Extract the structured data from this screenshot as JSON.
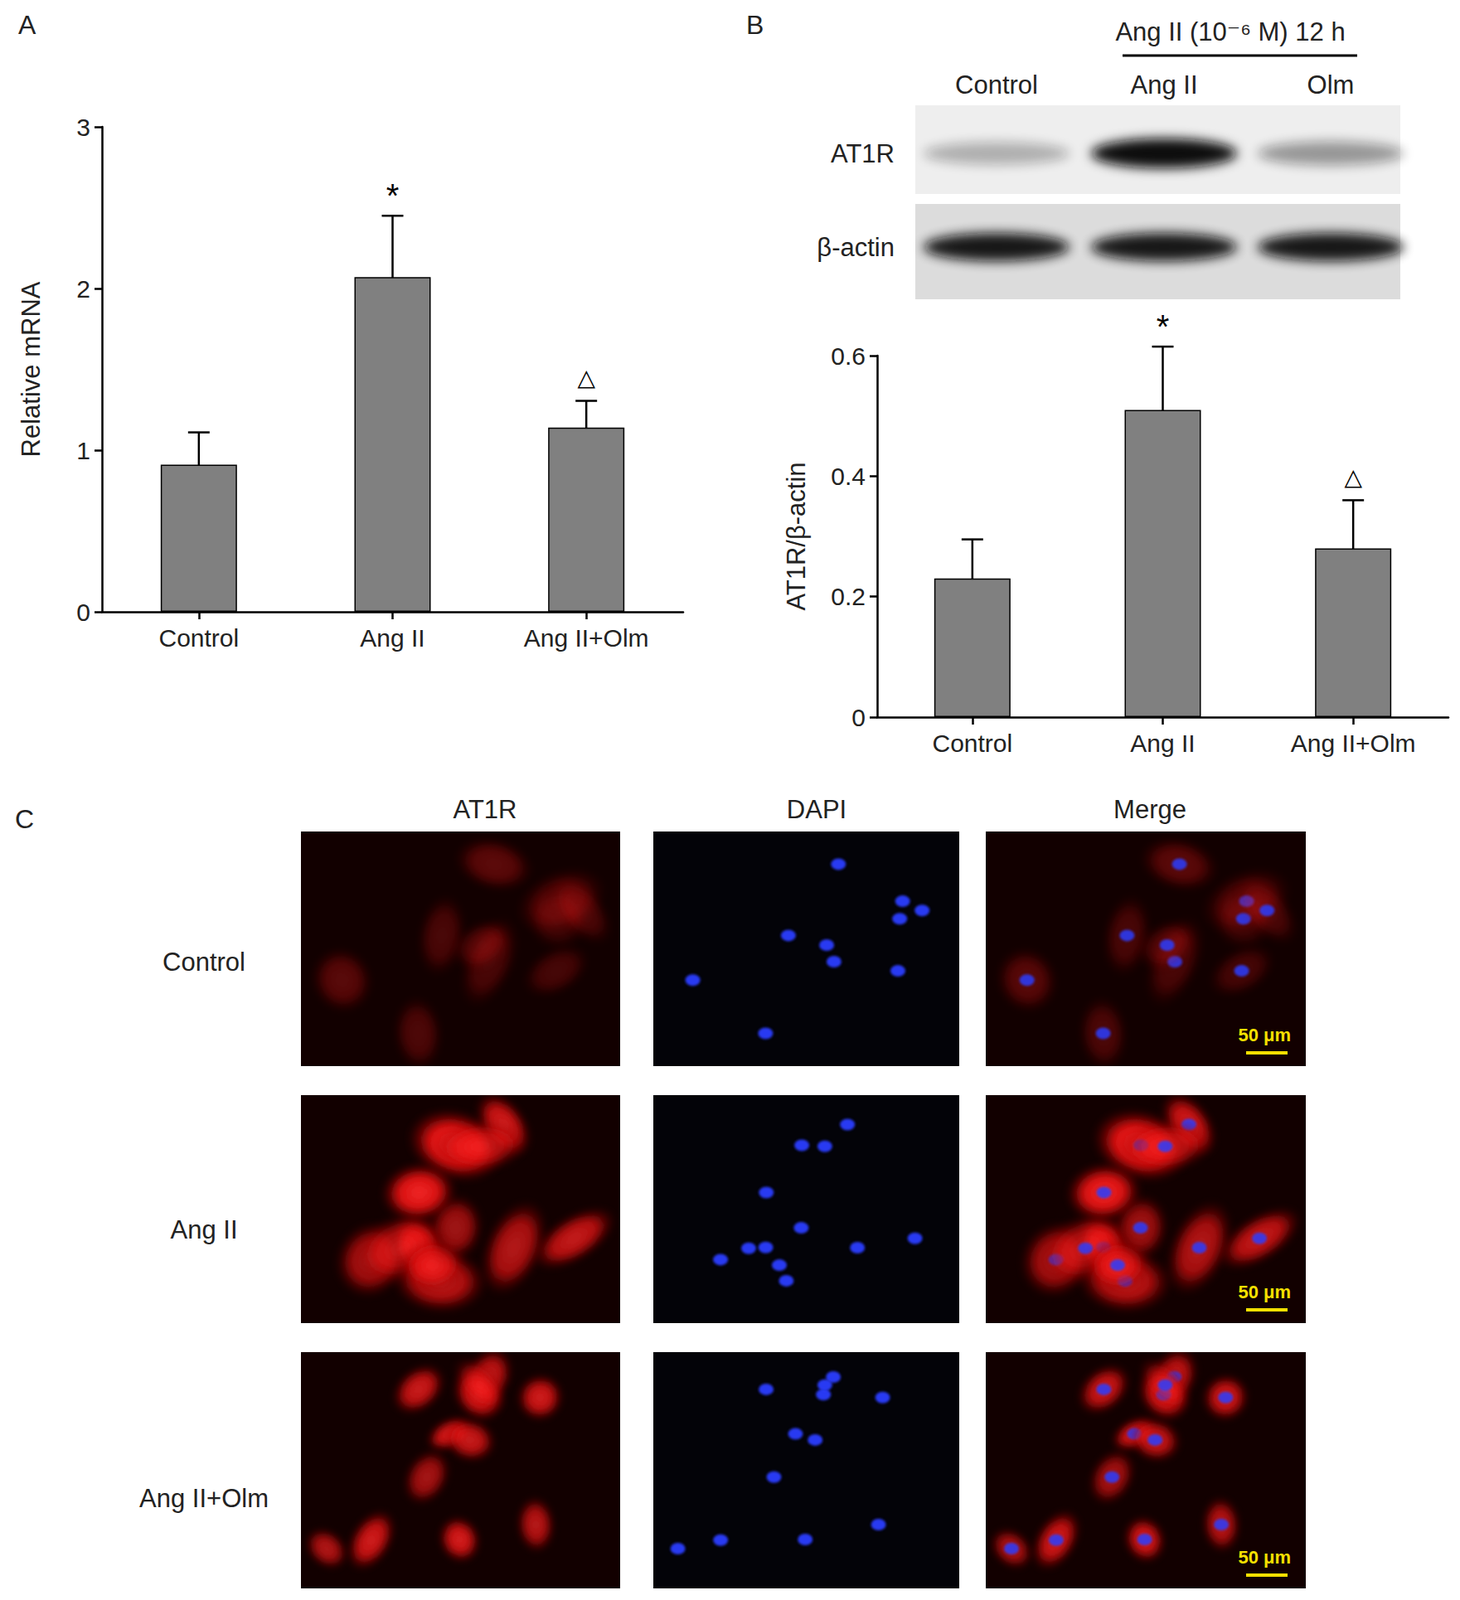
{
  "chart_data": [
    {
      "type": "bar",
      "categories": [
        "Control",
        "Ang II",
        "Ang II+Olm"
      ],
      "values": [
        0.91,
        2.07,
        1.14
      ],
      "errors": [
        0.2,
        0.38,
        0.165
      ],
      "annotations": [
        null,
        "*",
        "△"
      ],
      "ylabel": "Relative mRNA",
      "ylim": [
        0,
        3
      ],
      "yticks": [
        0,
        1,
        2,
        3
      ],
      "color": "#808080",
      "grid": false
    },
    {
      "type": "bar",
      "categories": [
        "Control",
        "Ang II",
        "Ang II+Olm"
      ],
      "values": [
        0.23,
        0.51,
        0.28
      ],
      "errors": [
        0.065,
        0.105,
        0.08
      ],
      "annotations": [
        null,
        "*",
        "△"
      ],
      "ylabel": "AT1R/β-actin",
      "ylim": [
        0,
        0.6
      ],
      "yticks": [
        0,
        0.2,
        0.4,
        0.6
      ],
      "color": "#808080",
      "grid": false
    }
  ],
  "panel_labels": [
    "A",
    "B",
    "C"
  ],
  "blot": {
    "header": "Ang II (10⁻⁶ M) 12 h",
    "lanes": [
      "Control",
      "Ang II",
      "Olm"
    ],
    "rows": [
      "AT1R",
      "β-actin"
    ]
  },
  "microscopy": {
    "columns": [
      "AT1R",
      "DAPI",
      "Merge"
    ],
    "rows": [
      "Control",
      "Ang II",
      "Ang II+Olm"
    ],
    "scale_bar": "50 μm"
  }
}
